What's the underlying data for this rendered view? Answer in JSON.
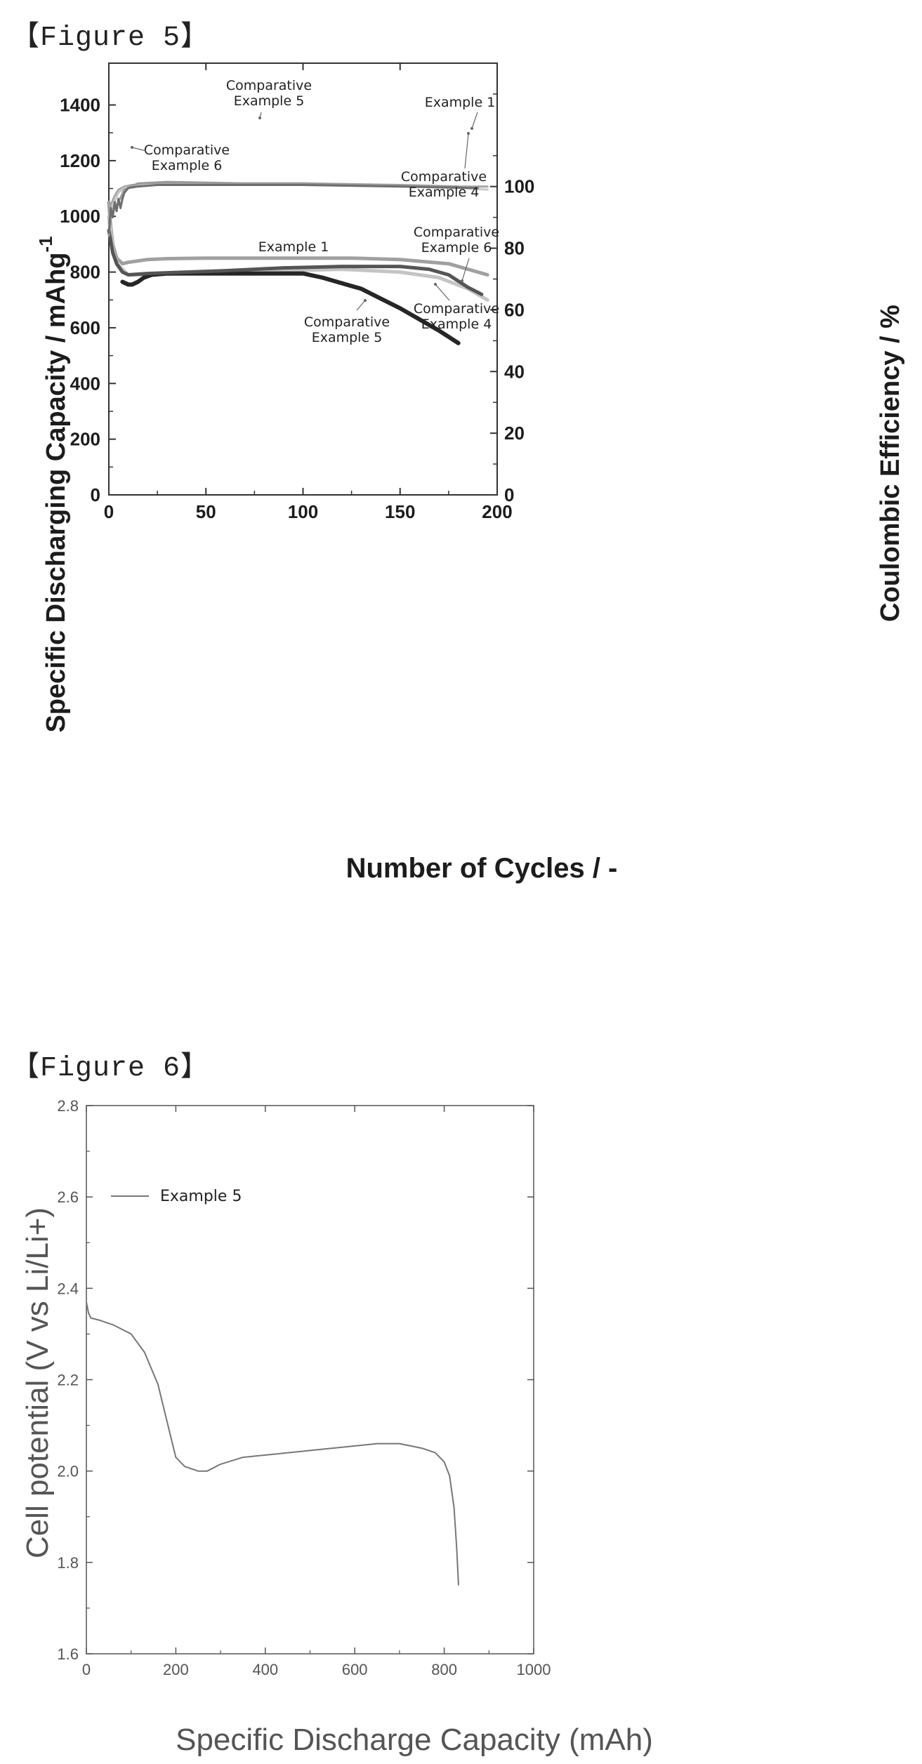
{
  "figure5": {
    "label": "【Figure 5】",
    "chart_data": {
      "type": "line",
      "xlabel": "Number of Cycles / -",
      "ylabel": "Specific Discharging Capacity / mAhg",
      "ylabel_sup": "-1",
      "y2label": "Coulombic Efficiency / %",
      "xlim": [
        0,
        200
      ],
      "ylim": [
        0,
        1550
      ],
      "y2lim": [
        0,
        140
      ],
      "xticks": [
        "0",
        "50",
        "100",
        "150",
        "200"
      ],
      "yticks": [
        "0",
        "200",
        "400",
        "600",
        "800",
        "1000",
        "1200",
        "1400"
      ],
      "y2ticks": [
        "0",
        "20",
        "40",
        "60",
        "80",
        "100"
      ],
      "grid": false,
      "series": [
        {
          "name": "Example 1",
          "axis": "left",
          "color": "#a0a0a0",
          "x": [
            0,
            1,
            2,
            4,
            7,
            10,
            15,
            20,
            30,
            50,
            75,
            100,
            125,
            150,
            175,
            195
          ],
          "values": [
            1050,
            960,
            900,
            850,
            830,
            835,
            840,
            845,
            848,
            850,
            850,
            850,
            850,
            845,
            830,
            790
          ]
        },
        {
          "name": "Comparative Example 4",
          "axis": "left",
          "color": "#c4c4c4",
          "x": [
            0,
            2,
            4,
            7,
            10,
            20,
            40,
            60,
            90,
            120,
            150,
            170,
            185,
            195
          ],
          "values": [
            1000,
            880,
            830,
            810,
            790,
            790,
            795,
            800,
            805,
            810,
            800,
            780,
            740,
            700
          ]
        },
        {
          "name": "Comparative Example 5",
          "axis": "left",
          "color": "#262626",
          "x": [
            7,
            10,
            12,
            15,
            18,
            22,
            30,
            50,
            70,
            90,
            100,
            110,
            120,
            130,
            140,
            150,
            160,
            170,
            180
          ],
          "values": [
            765,
            755,
            755,
            765,
            780,
            790,
            795,
            795,
            795,
            795,
            795,
            780,
            760,
            740,
            705,
            670,
            630,
            590,
            545
          ]
        },
        {
          "name": "Comparative Example 6",
          "axis": "left",
          "color": "#555555",
          "x": [
            0,
            2,
            4,
            7,
            10,
            20,
            40,
            60,
            90,
            120,
            150,
            165,
            175,
            185,
            192
          ],
          "values": [
            950,
            870,
            830,
            800,
            790,
            795,
            800,
            805,
            815,
            820,
            820,
            810,
            790,
            745,
            720
          ]
        },
        {
          "name": "Example 1",
          "axis": "right",
          "color": "#a6a6a6",
          "x": [
            0,
            1,
            3,
            5,
            8,
            12,
            20,
            50,
            100,
            150,
            180,
            195
          ],
          "values": [
            88,
            94,
            97,
            99,
            100,
            100.5,
            101,
            101,
            101,
            100.5,
            100,
            100
          ]
        },
        {
          "name": "Comparative Example 4",
          "axis": "right",
          "color": "#c8c8c8",
          "x": [
            0,
            1,
            3,
            5,
            8,
            12,
            20,
            50,
            100,
            150,
            180,
            195
          ],
          "values": [
            86,
            92,
            95,
            98,
            99.5,
            100,
            100.5,
            100.5,
            100.5,
            100,
            99.5,
            99
          ]
        },
        {
          "name": "Comparative Example 5",
          "axis": "right",
          "color": "#9a9a9a",
          "x": [
            0,
            1,
            3,
            5,
            8,
            15,
            30,
            70,
            100,
            140,
            180
          ],
          "values": [
            84,
            90,
            93,
            95,
            99,
            101,
            101.5,
            101,
            101,
            100.5,
            100
          ]
        },
        {
          "name": "Comparative Example 6",
          "axis": "right",
          "color": "#6e6e6e",
          "x": [
            0,
            1,
            2,
            3,
            4,
            5,
            6,
            7,
            8,
            10,
            15,
            25,
            50,
            100,
            150,
            190
          ],
          "values": [
            85,
            93,
            90,
            95,
            92,
            96,
            93,
            96,
            98,
            99.5,
            100,
            100.5,
            100.5,
            100.5,
            100,
            99.5
          ]
        }
      ],
      "annotations": [
        {
          "lines": [
            "Comparative",
            "Example 5"
          ],
          "target": {
            "axis": "right",
            "x": 80,
            "y": 100.8
          }
        },
        {
          "lines": [
            "Example 1"
          ],
          "target": {
            "axis": "right",
            "x": 188,
            "y": 99.5
          }
        },
        {
          "lines": [
            "Comparative",
            "Example 6"
          ],
          "target": {
            "axis": "right",
            "x": 11,
            "y": 93
          }
        },
        {
          "lines": [
            "Comparative",
            "Example 4"
          ],
          "target": {
            "axis": "right",
            "x": 185,
            "y": 98
          }
        },
        {
          "lines": [
            "Example 1"
          ],
          "target": null
        },
        {
          "lines": [
            "Comparative",
            "Example 6"
          ],
          "target": {
            "axis": "left",
            "x": 183,
            "y": 770
          }
        },
        {
          "lines": [
            "Comparative",
            "Example 4"
          ],
          "target": {
            "axis": "left",
            "x": 168,
            "y": 762
          }
        },
        {
          "lines": [
            "Comparative",
            "Example 5"
          ],
          "target": {
            "axis": "left",
            "x": 132,
            "y": 700
          }
        }
      ]
    }
  },
  "figure6": {
    "label": "【Figure 6】",
    "chart_data": {
      "type": "line",
      "xlabel": "Specific Discharge Capacity (mAh)",
      "ylabel": "Cell potential (V vs Li/Li+)",
      "xlim": [
        0,
        1000
      ],
      "ylim": [
        1.6,
        2.8
      ],
      "xticks": [
        "0",
        "200",
        "400",
        "600",
        "800",
        "1000"
      ],
      "yticks": [
        "1.6",
        "1.8",
        "2.0",
        "2.2",
        "2.4",
        "2.6",
        "2.8"
      ],
      "grid": false,
      "legend": "top-left",
      "series": [
        {
          "name": "Example 5",
          "color": "#777777",
          "x": [
            0,
            5,
            10,
            30,
            60,
            100,
            130,
            160,
            185,
            200,
            220,
            250,
            270,
            300,
            350,
            400,
            500,
            600,
            650,
            700,
            750,
            780,
            800,
            812,
            822,
            828,
            832
          ],
          "values": [
            2.37,
            2.345,
            2.335,
            2.33,
            2.32,
            2.3,
            2.26,
            2.19,
            2.09,
            2.03,
            2.01,
            2.0,
            2.0,
            2.015,
            2.03,
            2.035,
            2.045,
            2.055,
            2.06,
            2.06,
            2.05,
            2.04,
            2.02,
            1.99,
            1.92,
            1.83,
            1.75
          ]
        }
      ]
    }
  }
}
